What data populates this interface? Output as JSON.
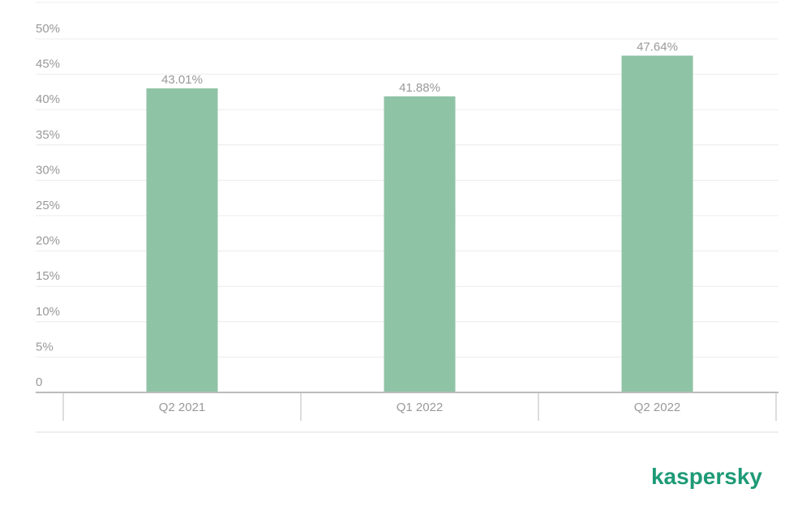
{
  "chart_data": {
    "type": "bar",
    "categories": [
      "Q2 2021",
      "Q1 2022",
      "Q2 2022"
    ],
    "values": [
      43.01,
      41.88,
      47.64
    ],
    "value_labels": [
      "43.01%",
      "41.88%",
      "47.64%"
    ],
    "color": "#8fc3a6",
    "ylim": [
      0,
      55
    ],
    "yticks": [
      0,
      {
        "value": 5,
        "label": "5%"
      },
      {
        "value": 10,
        "label": "10%"
      },
      {
        "value": 15,
        "label": "15%"
      },
      {
        "value": 20,
        "label": "20%"
      },
      {
        "value": 25,
        "label": "25%"
      },
      {
        "value": 30,
        "label": "30%"
      },
      {
        "value": 35,
        "label": "35%"
      },
      {
        "value": 40,
        "label": "40%"
      },
      {
        "value": 45,
        "label": "45%"
      },
      {
        "value": 50,
        "label": "50%"
      }
    ],
    "grid": true
  },
  "brand": "kaspersky"
}
